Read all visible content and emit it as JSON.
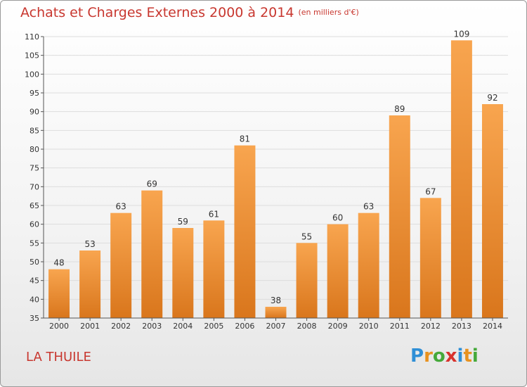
{
  "header": {
    "title": "Achats et Charges Externes 2000 à 2014",
    "unit": "(en milliers d'€)"
  },
  "footer": {
    "town": "LA THUILE",
    "brand_letters": [
      "P",
      "r",
      "o",
      "x",
      "i",
      "t",
      "i"
    ],
    "brand_colors": [
      "#2f8fd6",
      "#e8921f",
      "#45a93a",
      "#d8322c",
      "#2f8fd6",
      "#e8921f",
      "#45a93a"
    ]
  },
  "colors": {
    "title": "#c8372f",
    "bar_light": "#f8a54f",
    "bar_dark": "#d9761c",
    "grid": "#dddddd",
    "axis": "#555555"
  },
  "chart_data": {
    "type": "bar",
    "categories": [
      "2000",
      "2001",
      "2002",
      "2003",
      "2004",
      "2005",
      "2006",
      "2007",
      "2008",
      "2009",
      "2010",
      "2011",
      "2012",
      "2013",
      "2014"
    ],
    "values": [
      48,
      53,
      63,
      69,
      59,
      61,
      81,
      38,
      55,
      60,
      63,
      89,
      67,
      109,
      92
    ],
    "ylim": [
      35,
      110
    ],
    "yticks": [
      35,
      40,
      45,
      50,
      55,
      60,
      65,
      70,
      75,
      80,
      85,
      90,
      95,
      100,
      105,
      110
    ],
    "grid": "horizontal",
    "data_labels": true
  }
}
